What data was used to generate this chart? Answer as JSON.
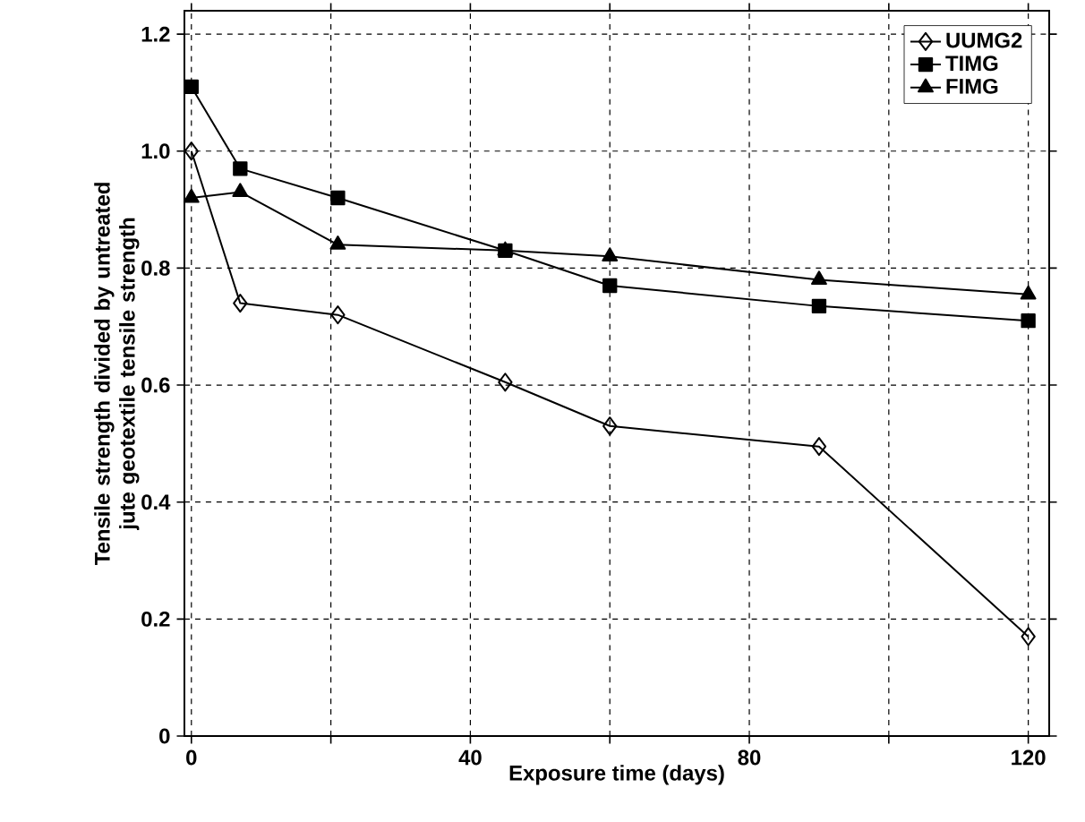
{
  "chart_data": {
    "type": "line",
    "xlabel": "Exposure time (days)",
    "ylabel": "Tensile strength divided by untreated jute geotextile tensile strength",
    "x": [
      0,
      7,
      21,
      45,
      60,
      90,
      120
    ],
    "xlim": [
      -1,
      123
    ],
    "xticks": [
      0,
      {
        "value": 20,
        "label": null
      },
      40,
      {
        "value": 60,
        "label": null
      },
      80,
      {
        "value": 100,
        "label": null
      },
      120
    ],
    "ylim": [
      0,
      1.24
    ],
    "yticks": [
      0,
      0.2,
      0.4,
      0.6,
      0.8,
      {
        "value": 1.0,
        "label": "1.0"
      },
      1.2
    ],
    "grid": true,
    "legend": "top right",
    "line_style": "solid",
    "series": [
      {
        "name": "UUMG2",
        "color": "#000000",
        "marker": "diamond",
        "values": [
          1.0,
          0.74,
          0.72,
          0.605,
          0.53,
          0.495,
          0.17
        ]
      },
      {
        "name": "TIMG",
        "color": "#000000",
        "marker": "square",
        "values": [
          1.11,
          0.97,
          0.92,
          0.83,
          0.77,
          0.735,
          0.71
        ]
      },
      {
        "name": "FIMG",
        "color": "#000000",
        "marker": "triangle",
        "values": [
          0.92,
          0.93,
          0.84,
          0.83,
          0.82,
          0.78,
          0.755
        ]
      }
    ]
  }
}
